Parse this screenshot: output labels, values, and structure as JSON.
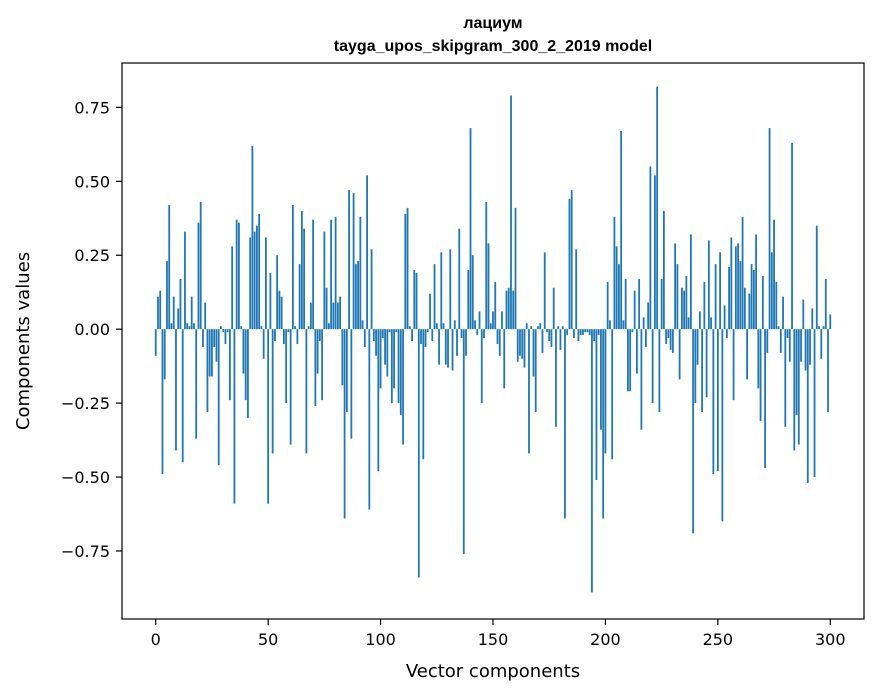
{
  "chart_data": {
    "type": "bar",
    "title": "лациум",
    "subtitle": "tayga_upos_skipgram_300_2_2019 model",
    "xlabel": "Vector components",
    "ylabel": "Components values",
    "xlim": [
      -15,
      315
    ],
    "ylim": [
      -0.98,
      0.9
    ],
    "x_ticks": [
      0,
      50,
      100,
      150,
      200,
      250,
      300
    ],
    "x_tick_labels": [
      "0",
      "50",
      "100",
      "150",
      "200",
      "250",
      "300"
    ],
    "y_ticks": [
      -0.75,
      -0.5,
      -0.25,
      0.0,
      0.25,
      0.5,
      0.75
    ],
    "y_tick_labels": [
      "−0.75",
      "−0.50",
      "−0.25",
      "0.00",
      "0.25",
      "0.50",
      "0.75"
    ],
    "grid": false,
    "bar_color": "#1f77b4",
    "x_start": 0,
    "values": [
      -0.09,
      0.11,
      0.13,
      -0.49,
      -0.17,
      0.23,
      0.42,
      0.02,
      0.11,
      -0.41,
      0.07,
      0.17,
      -0.45,
      0.33,
      0.02,
      0.01,
      0.11,
      0.02,
      -0.37,
      0.36,
      0.43,
      -0.06,
      0.09,
      -0.28,
      -0.16,
      -0.16,
      -0.06,
      -0.11,
      -0.46,
      0.01,
      -0.01,
      -0.05,
      -0.01,
      -0.24,
      0.28,
      -0.59,
      0.37,
      0.36,
      0.01,
      -0.15,
      -0.24,
      -0.3,
      0.31,
      0.62,
      0.33,
      0.35,
      0.39,
      0.01,
      -0.1,
      0.31,
      -0.59,
      0.19,
      -0.42,
      -0.04,
      0.25,
      0.13,
      0.11,
      -0.05,
      -0.25,
      -0.01,
      -0.39,
      0.42,
      0.01,
      -0.05,
      0.22,
      0.4,
      0.34,
      -0.42,
      0.01,
      0.09,
      0.37,
      -0.26,
      -0.15,
      -0.04,
      -0.24,
      0.33,
      0.14,
      0.02,
      0.37,
      0.09,
      0.38,
      0.09,
      0.11,
      -0.19,
      -0.64,
      -0.28,
      0.47,
      -0.37,
      0.46,
      0.22,
      0.23,
      0.38,
      0.03,
      -0.06,
      0.52,
      -0.61,
      0.27,
      -0.04,
      -0.09,
      -0.48,
      -0.2,
      -0.03,
      -0.12,
      -0.16,
      -0.01,
      -0.25,
      -0.2,
      -0.01,
      -0.25,
      -0.29,
      -0.39,
      0.39,
      0.41,
      0.01,
      -0.04,
      0.2,
      0.19,
      -0.84,
      -0.05,
      -0.44,
      -0.06,
      -0.01,
      0.12,
      -0.04,
      0.22,
      0.02,
      -0.12,
      0.26,
      0.02,
      -0.12,
      -0.13,
      0.27,
      -0.14,
      0.03,
      -0.09,
      0.34,
      -0.03,
      -0.76,
      -0.09,
      0.2,
      0.68,
      0.25,
      0.03,
      -0.02,
      0.06,
      -0.25,
      -0.03,
      0.43,
      0.29,
      0.02,
      0.06,
      0.16,
      -0.05,
      -0.09,
      0.06,
      -0.2,
      0.13,
      0.14,
      0.79,
      0.13,
      0.41,
      -0.11,
      -0.09,
      -0.1,
      -0.13,
      0.02,
      -0.42,
      0.01,
      -0.16,
      -0.28,
      0.01,
      0.02,
      -0.08,
      0.26,
      -0.01,
      -0.04,
      -0.06,
      0.14,
      -0.33,
      0.01,
      -0.07,
      0.01,
      -0.64,
      -0.02,
      0.44,
      0.47,
      -0.03,
      0.27,
      -0.04,
      -0.02,
      -0.02,
      -0.01,
      -0.01,
      -0.02,
      -0.89,
      -0.04,
      -0.51,
      -0.02,
      -0.34,
      -0.64,
      -0.42,
      0.16,
      0.03,
      -0.44,
      0.38,
      0.28,
      0.22,
      0.67,
      0.03,
      0.17,
      -0.21,
      -0.21,
      -0.01,
      0.13,
      -0.15,
      0.17,
      -0.34,
      0.04,
      -0.06,
      0.09,
      0.55,
      -0.25,
      0.52,
      0.82,
      -0.28,
      0.17,
      0.4,
      -0.05,
      -0.03,
      -0.07,
      -0.08,
      0.29,
      0.22,
      -0.17,
      0.14,
      0.13,
      0.18,
      0.04,
      0.32,
      -0.69,
      -0.25,
      -0.12,
      0.06,
      -0.28,
      0.16,
      -0.23,
      0.3,
      0.04,
      -0.49,
      0.22,
      -0.48,
      0.26,
      -0.65,
      0.08,
      -0.03,
      0.21,
      0.31,
      -0.24,
      0.28,
      0.29,
      0.23,
      0.38,
      0.14,
      -0.17,
      0.12,
      0.22,
      0.2,
      0.32,
      -0.2,
      -0.31,
      0.18,
      -0.47,
      -0.08,
      0.68,
      0.26,
      0.37,
      0.16,
      0.01,
      -0.08,
      0.11,
      -0.33,
      -0.03,
      -0.11,
      0.63,
      -0.41,
      -0.29,
      -0.39,
      -0.11,
      0.1,
      -0.14,
      -0.52,
      -0.12,
      0.07,
      -0.5,
      0.35,
      0.01,
      -0.1,
      0.01,
      0.17,
      -0.28,
      0.05
    ]
  }
}
